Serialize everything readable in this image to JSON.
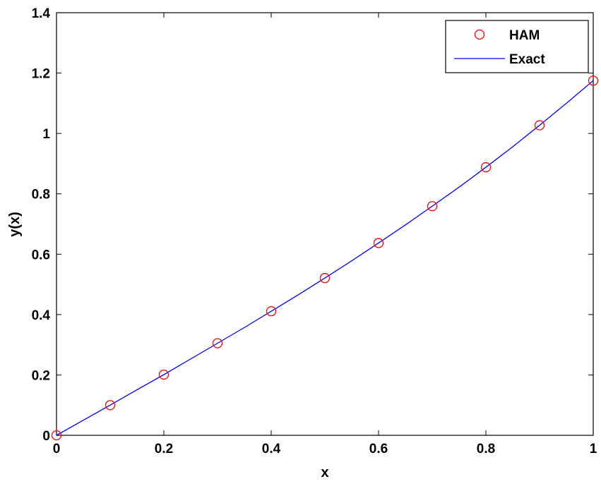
{
  "chart_data": {
    "type": "line",
    "title": "",
    "xlabel": "x",
    "ylabel": "y(x)",
    "xlim": [
      0,
      1
    ],
    "ylim": [
      0,
      1.4
    ],
    "xticks": [
      "0",
      "0.2",
      "0.4",
      "0.6",
      "0.8",
      "1"
    ],
    "yticks": [
      "0",
      "0.2",
      "0.4",
      "0.6",
      "0.8",
      "1",
      "1.2",
      "1.4"
    ],
    "grid": false,
    "legend_position": "top-right",
    "series": [
      {
        "name": "HAM",
        "style": "markers",
        "marker": "circle",
        "color": "#ff0000",
        "x": [
          0,
          0.1,
          0.2,
          0.3,
          0.4,
          0.5,
          0.6,
          0.7,
          0.8,
          0.9,
          1.0
        ],
        "y": [
          0,
          0.1,
          0.201,
          0.305,
          0.411,
          0.521,
          0.637,
          0.759,
          0.888,
          1.027,
          1.175
        ]
      },
      {
        "name": "Exact",
        "style": "line",
        "color": "#0000ff",
        "x": [
          0,
          0.05,
          0.1,
          0.15,
          0.2,
          0.25,
          0.3,
          0.35,
          0.4,
          0.45,
          0.5,
          0.55,
          0.6,
          0.65,
          0.7,
          0.75,
          0.8,
          0.85,
          0.9,
          0.95,
          1.0
        ],
        "y": [
          0,
          0.05,
          0.1,
          0.151,
          0.201,
          0.253,
          0.305,
          0.357,
          0.411,
          0.465,
          0.521,
          0.578,
          0.637,
          0.697,
          0.759,
          0.822,
          0.888,
          0.956,
          1.027,
          1.1,
          1.175
        ]
      }
    ]
  }
}
